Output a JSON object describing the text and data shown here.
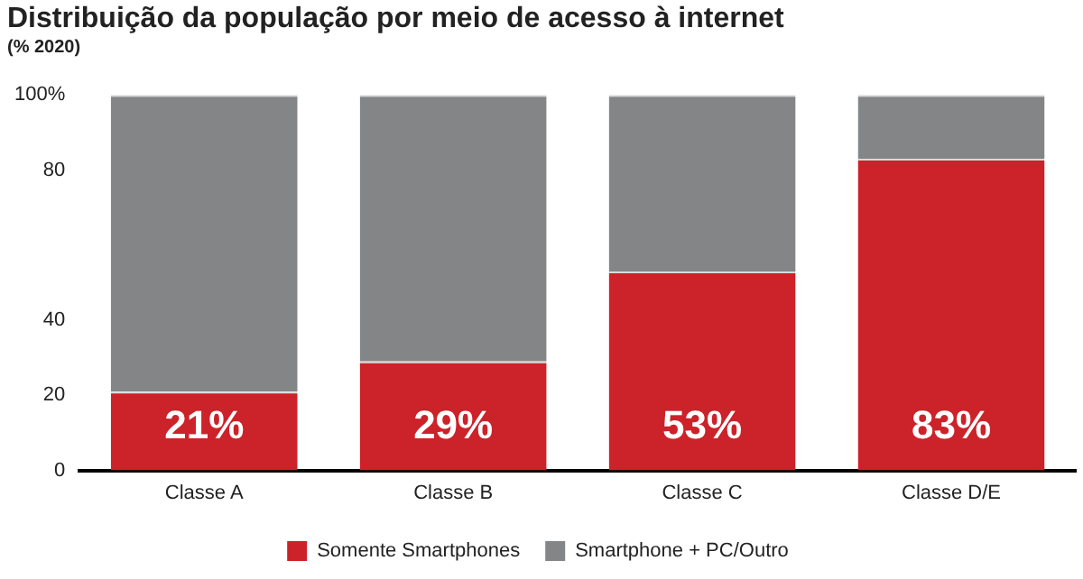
{
  "chart_data": {
    "type": "bar",
    "title": "Distribuição da população por meio de acesso à internet",
    "subtitle": "(% 2020)",
    "categories": [
      "Classe A",
      "Classe B",
      "Classe C",
      "Classe D/E"
    ],
    "stacked": true,
    "series": [
      {
        "name": "Somente Smartphones",
        "color": "#cc2229",
        "values": [
          21,
          29,
          53,
          83
        ],
        "value_labels": [
          "21%",
          "29%",
          "53%",
          "83%"
        ]
      },
      {
        "name": "Smartphone + PC/Outro",
        "color": "#848587",
        "values": [
          79,
          71,
          47,
          17
        ],
        "value_labels": [
          null,
          null,
          null,
          null
        ]
      }
    ],
    "ylim": [
      0,
      100
    ],
    "yticks": [
      0,
      20,
      40,
      80,
      {
        "value": 100,
        "label": "100%"
      }
    ],
    "grid": false,
    "legend": "bottom"
  }
}
